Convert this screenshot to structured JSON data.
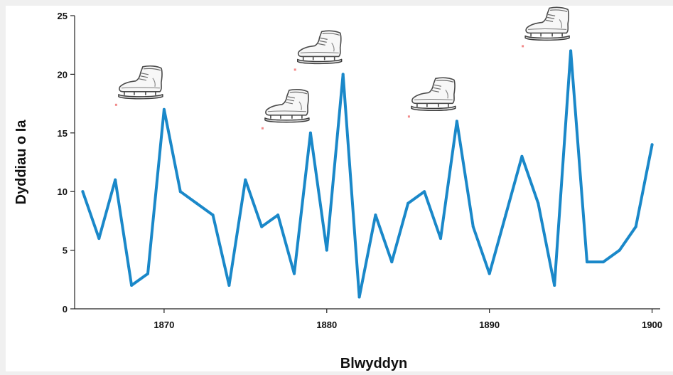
{
  "chart_data": {
    "type": "line",
    "xlabel": "Blwyddyn",
    "ylabel": "Dyddiau o Ia",
    "xlim": [
      1864.5,
      1900.5
    ],
    "ylim": [
      0,
      25
    ],
    "x_ticks": [
      1870,
      1880,
      1890,
      1900
    ],
    "y_ticks": [
      0,
      5,
      10,
      15,
      20,
      25
    ],
    "grid": false,
    "legend": "none",
    "series": [
      {
        "color": "#1a88c9",
        "x": [
          1865,
          1866,
          1867,
          1868,
          1869,
          1870,
          1871,
          1872,
          1873,
          1874,
          1875,
          1876,
          1877,
          1878,
          1879,
          1880,
          1881,
          1882,
          1883,
          1884,
          1885,
          1886,
          1887,
          1888,
          1889,
          1890,
          1891,
          1892,
          1893,
          1894,
          1895,
          1896,
          1897,
          1898,
          1899,
          1900
        ],
        "values": [
          10,
          6,
          11,
          2,
          3,
          17,
          10,
          9,
          8,
          2,
          11,
          7,
          8,
          3,
          15,
          5,
          20,
          1,
          8,
          4,
          9,
          10,
          6,
          16,
          7,
          3,
          8,
          13,
          9,
          2,
          22,
          4,
          4,
          5,
          7,
          14
        ]
      }
    ],
    "annotations": [
      {
        "icon": "ice-skate-icon",
        "x": 1870,
        "y": 17
      },
      {
        "icon": "ice-skate-icon",
        "x": 1879,
        "y": 15
      },
      {
        "icon": "ice-skate-icon",
        "x": 1881,
        "y": 20
      },
      {
        "icon": "ice-skate-icon",
        "x": 1888,
        "y": 16
      },
      {
        "icon": "ice-skate-icon",
        "x": 1895,
        "y": 22
      }
    ]
  }
}
